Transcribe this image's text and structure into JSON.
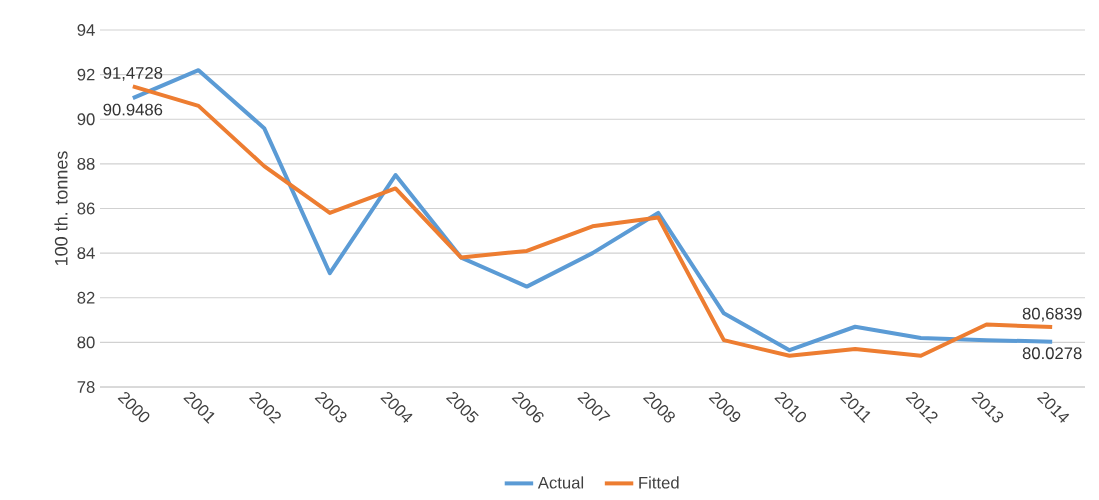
{
  "chart_data": {
    "type": "line",
    "ylabel": "100 th. tonnes",
    "categories": [
      "2000",
      "2001",
      "2002",
      "2003",
      "2004",
      "2005",
      "2006",
      "2007",
      "2008",
      "2009",
      "2010",
      "2011",
      "2012",
      "2013",
      "2014"
    ],
    "series": [
      {
        "name": "Actual",
        "color": "#5b9bd5",
        "values": [
          90.9486,
          92.2,
          89.6,
          83.1,
          87.5,
          83.8,
          82.5,
          84.0,
          85.8,
          81.3,
          79.65,
          80.7,
          80.2,
          80.1,
          80.0278
        ],
        "value_labels": [
          "90.9486",
          null,
          null,
          null,
          null,
          null,
          null,
          null,
          null,
          null,
          null,
          null,
          null,
          null,
          "80.0278"
        ]
      },
      {
        "name": "Fitted",
        "color": "#ed7d31",
        "values": [
          91.4728,
          90.6,
          87.9,
          85.8,
          86.9,
          83.8,
          84.1,
          85.2,
          85.6,
          80.1,
          79.4,
          79.7,
          79.4,
          80.8,
          80.6839
        ],
        "value_labels": [
          "91,4728",
          null,
          null,
          null,
          null,
          null,
          null,
          null,
          null,
          null,
          null,
          null,
          null,
          null,
          "80,6839"
        ]
      }
    ],
    "ylim": [
      78,
      94
    ],
    "yticks": [
      78,
      80,
      82,
      84,
      86,
      88,
      90,
      92,
      94
    ],
    "grid": "y",
    "legend": "bottom",
    "marker": "none",
    "line_style": "solid"
  }
}
